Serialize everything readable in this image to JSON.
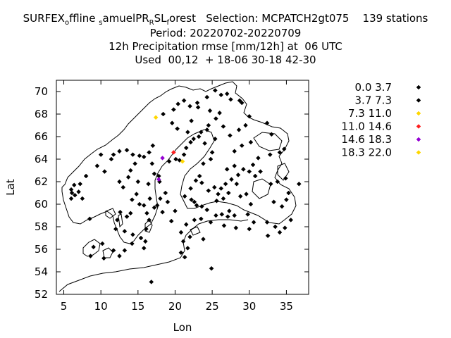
{
  "title": {
    "line1": {
      "p1": "SURFEX",
      "s1": "o",
      "p2": "ffline ",
      "s2": "s",
      "p3": "amuelPR",
      "s3": "R",
      "p4": "SL",
      "s4": "f",
      "p5": "orest   Selection: MCPATCH2gt075    139 stations"
    },
    "line2": "Period: 20220702-20220709",
    "line3": "12h Precipitation rmse [mm/12h] at  06 UTC",
    "line4": "Used  00,12  + 18-06 30-18 42-30"
  },
  "colors": {
    "black": "#000000",
    "yellow": "#ffd700",
    "red": "#ff2020",
    "purple": "#9400d3"
  },
  "chart_data": {
    "type": "scatter",
    "xlabel": "Lon",
    "ylabel": "Lat",
    "xlim": [
      4,
      38
    ],
    "ylim": [
      52,
      71
    ],
    "xticks": [
      "5",
      "10",
      "15",
      "20",
      "25",
      "30",
      "35"
    ],
    "yticks": [
      "52",
      "54",
      "56",
      "58",
      "60",
      "62",
      "64",
      "66",
      "68",
      "70"
    ],
    "legend_position": "right",
    "grid": false,
    "legend": [
      {
        "label": "0.0 3.7",
        "color": "#000000"
      },
      {
        "label": "3.7 7.3",
        "color": "#000000"
      },
      {
        "label": "7.3 11.0",
        "color": "#ffd700"
      },
      {
        "label": "11.0 14.6",
        "color": "#ff2020"
      },
      {
        "label": "14.6 18.3",
        "color": "#9400d3"
      },
      {
        "label": "18.3 22.0",
        "color": "#ffd700"
      }
    ],
    "series": [
      {
        "name": "0.0 3.7",
        "color": "#000000",
        "points": [
          [
            6.0,
            61.3
          ],
          [
            6.1,
            61.0
          ],
          [
            6.5,
            60.8
          ],
          [
            7.0,
            61.1
          ],
          [
            6.0,
            60.5
          ],
          [
            7.5,
            60.5
          ],
          [
            6.4,
            61.7
          ],
          [
            7.2,
            61.8
          ],
          [
            8.0,
            62.5
          ],
          [
            8.5,
            58.7
          ],
          [
            9.5,
            63.4
          ],
          [
            10.0,
            64.4
          ],
          [
            10.5,
            62.9
          ],
          [
            11.4,
            64.0
          ],
          [
            11.7,
            64.4
          ],
          [
            12.5,
            62.0
          ],
          [
            13.0,
            61.5
          ],
          [
            12.5,
            64.7
          ],
          [
            13.5,
            64.8
          ],
          [
            14.0,
            63.0
          ],
          [
            14.3,
            64.4
          ],
          [
            14.6,
            63.6
          ],
          [
            15.0,
            62.0
          ],
          [
            13.7,
            62.4
          ],
          [
            15.2,
            64.3
          ],
          [
            15.8,
            64.2
          ],
          [
            16.5,
            64.6
          ],
          [
            17.0,
            65.2
          ],
          [
            16.9,
            63.6
          ],
          [
            17.2,
            62.7
          ],
          [
            16.4,
            61.8
          ],
          [
            14.8,
            60.9
          ],
          [
            14.2,
            60.4
          ],
          [
            15.2,
            60.0
          ],
          [
            15.8,
            59.9
          ],
          [
            16.6,
            60.5
          ],
          [
            16.2,
            59.2
          ],
          [
            17.2,
            59.7
          ],
          [
            14.0,
            59.2
          ],
          [
            13.5,
            58.9
          ],
          [
            12.6,
            59.3
          ],
          [
            12.2,
            58.6
          ],
          [
            12.0,
            57.8
          ],
          [
            13.2,
            57.6
          ],
          [
            14.3,
            57.3
          ],
          [
            15.4,
            57.0
          ],
          [
            16.1,
            57.8
          ],
          [
            16.5,
            58.6
          ],
          [
            16.0,
            56.7
          ],
          [
            15.8,
            56.1
          ],
          [
            14.2,
            56.5
          ],
          [
            13.2,
            55.9
          ],
          [
            11.7,
            55.9
          ],
          [
            12.5,
            55.4
          ],
          [
            9.0,
            56.2
          ],
          [
            10.2,
            56.5
          ],
          [
            8.6,
            55.4
          ],
          [
            10.4,
            55.2
          ],
          [
            16.8,
            53.1
          ],
          [
            20.8,
            55.7
          ],
          [
            21.3,
            55.3
          ],
          [
            19.5,
            58.5
          ],
          [
            20.0,
            59.4
          ],
          [
            19.0,
            60.2
          ],
          [
            18.7,
            61.0
          ],
          [
            18.0,
            60.5
          ],
          [
            18.3,
            59.3
          ],
          [
            17.6,
            59.9
          ],
          [
            17.9,
            62.0
          ],
          [
            17.8,
            62.5
          ],
          [
            19.2,
            63.8
          ],
          [
            20.1,
            64.0
          ],
          [
            20.6,
            63.9
          ],
          [
            21.2,
            64.4
          ],
          [
            21.5,
            65.0
          ],
          [
            22.1,
            65.5
          ],
          [
            22.5,
            65.8
          ],
          [
            23.2,
            66.0
          ],
          [
            21.7,
            66.4
          ],
          [
            20.3,
            66.7
          ],
          [
            19.6,
            67.2
          ],
          [
            18.4,
            68.0
          ],
          [
            19.8,
            68.4
          ],
          [
            20.4,
            68.9
          ],
          [
            21.2,
            69.2
          ],
          [
            22.0,
            68.7
          ],
          [
            23.0,
            69.0
          ],
          [
            25.4,
            70.1
          ],
          [
            24.3,
            69.5
          ],
          [
            26.2,
            69.7
          ],
          [
            27.5,
            69.3
          ],
          [
            28.7,
            69.2
          ],
          [
            29.0,
            69.0
          ],
          [
            27.0,
            69.8
          ],
          [
            23.5,
            66.4
          ],
          [
            24.3,
            66.6
          ],
          [
            25.4,
            65.8
          ],
          [
            24.0,
            65.4
          ],
          [
            25.0,
            64.6
          ],
          [
            24.8,
            64.0
          ],
          [
            23.8,
            63.6
          ],
          [
            23.3,
            62.5
          ],
          [
            22.8,
            62.1
          ],
          [
            23.6,
            61.9
          ],
          [
            24.5,
            61.2
          ],
          [
            25.3,
            61.5
          ],
          [
            25.8,
            60.9
          ],
          [
            26.2,
            61.4
          ],
          [
            26.8,
            61.8
          ],
          [
            27.2,
            61.0
          ],
          [
            27.6,
            62.2
          ],
          [
            28.3,
            61.8
          ],
          [
            28.5,
            62.6
          ],
          [
            27.0,
            63.1
          ],
          [
            28.0,
            63.4
          ],
          [
            29.2,
            63.1
          ],
          [
            30.0,
            62.9
          ],
          [
            30.5,
            63.5
          ],
          [
            31.2,
            64.1
          ],
          [
            32.8,
            64.4
          ],
          [
            34.7,
            64.9
          ],
          [
            34.1,
            64.6
          ],
          [
            33.0,
            66.2
          ],
          [
            32.4,
            67.2
          ],
          [
            30.0,
            67.8
          ],
          [
            29.5,
            67.0
          ],
          [
            28.6,
            66.6
          ],
          [
            27.4,
            66.1
          ],
          [
            26.5,
            66.9
          ],
          [
            26.0,
            68.1
          ],
          [
            25.5,
            67.6
          ],
          [
            24.5,
            67.0
          ],
          [
            24.7,
            68.3
          ],
          [
            23.1,
            68.6
          ],
          [
            22.2,
            67.4
          ],
          [
            30.2,
            65.5
          ],
          [
            29.0,
            65.2
          ],
          [
            28.0,
            64.7
          ],
          [
            30.8,
            62.5
          ],
          [
            31.5,
            62.9
          ],
          [
            32.9,
            61.8
          ],
          [
            33.8,
            62.0
          ],
          [
            34.9,
            62.3
          ],
          [
            36.7,
            61.8
          ],
          [
            35.3,
            61.0
          ],
          [
            35.0,
            60.4
          ],
          [
            33.3,
            60.2
          ],
          [
            34.4,
            59.8
          ],
          [
            30.2,
            60.0
          ],
          [
            29.6,
            60.9
          ],
          [
            30.6,
            58.4
          ],
          [
            30.0,
            57.8
          ],
          [
            28.2,
            57.9
          ],
          [
            29.8,
            59.1
          ],
          [
            32.4,
            58.4
          ],
          [
            33.5,
            58.0
          ],
          [
            34.8,
            57.9
          ],
          [
            32.5,
            57.2
          ],
          [
            34.1,
            57.5
          ],
          [
            35.6,
            58.6
          ],
          [
            24.9,
            54.3
          ],
          [
            24.3,
            59.5
          ],
          [
            23.6,
            59.8
          ],
          [
            22.9,
            59.9
          ],
          [
            22.2,
            60.4
          ],
          [
            21.3,
            60.7
          ],
          [
            22.1,
            61.4
          ],
          [
            22.6,
            60.2
          ],
          [
            25.6,
            60.3
          ],
          [
            26.5,
            60.5
          ],
          [
            28.8,
            60.7
          ],
          [
            27.3,
            59.4
          ],
          [
            26.3,
            59.1
          ],
          [
            25.5,
            59.0
          ],
          [
            24.8,
            58.4
          ],
          [
            26.6,
            58.1
          ],
          [
            27.1,
            58.9
          ],
          [
            28.0,
            59.0
          ],
          [
            21.5,
            58.2
          ],
          [
            22.6,
            58.6
          ],
          [
            23.5,
            58.7
          ],
          [
            20.8,
            57.5
          ],
          [
            22.0,
            57.1
          ],
          [
            23.8,
            56.9
          ],
          [
            21.7,
            56.1
          ],
          [
            21.1,
            56.7
          ]
        ]
      },
      {
        "name": "7.3 11.0",
        "color": "#ffd700",
        "points": [
          [
            17.4,
            67.7
          ],
          [
            21.0,
            63.8
          ]
        ]
      },
      {
        "name": "11.0 14.6",
        "color": "#ff2020",
        "points": [
          [
            19.8,
            64.6
          ]
        ]
      },
      {
        "name": "14.6 18.3",
        "color": "#9400d3",
        "points": [
          [
            18.3,
            64.1
          ],
          [
            17.8,
            62.2
          ]
        ]
      }
    ]
  }
}
